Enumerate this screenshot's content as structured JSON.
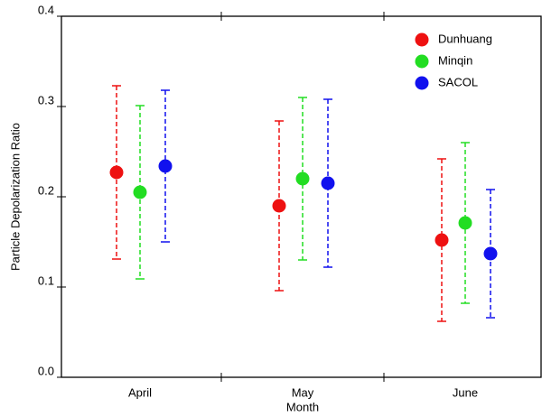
{
  "chart_data": {
    "type": "errorbar",
    "x_label": "Month",
    "y_label": "Particle Depolarization Ratio",
    "categories": [
      "April",
      "May",
      "June"
    ],
    "series": [
      {
        "name": "Dunhuang",
        "color": "#ee1111",
        "values": [
          0.227,
          0.19,
          0.152
        ],
        "errors": [
          0.096,
          0.094,
          0.09
        ]
      },
      {
        "name": "Minqin",
        "color": "#22dd22",
        "values": [
          0.205,
          0.22,
          0.171
        ],
        "errors": [
          0.096,
          0.09,
          0.089
        ]
      },
      {
        "name": "SACOL",
        "color": "#1111ee",
        "values": [
          0.234,
          0.215,
          0.137
        ],
        "errors": [
          0.084,
          0.093,
          0.071
        ]
      }
    ],
    "ylim": [
      0,
      0.4
    ],
    "yticks": [
      {
        "value": 0,
        "label": "0.0"
      },
      0.1,
      0.2,
      0.3,
      0.4
    ],
    "grid": false,
    "legend": "upper right"
  }
}
